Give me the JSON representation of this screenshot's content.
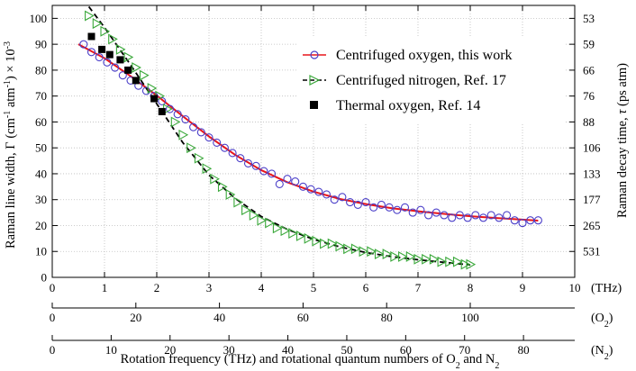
{
  "chart_data": {
    "type": "scatter",
    "title": "",
    "xlabel_parts": {
      "main": "Rotation frequency (THz) and rotational quantum numbers of O",
      "sub1": "2",
      "and": " and N",
      "sub2": "2"
    },
    "ylabel_left": {
      "prefix": "Raman line width, Γ (cm",
      "sup1": "-1",
      "mid": " atm",
      "sup2": "-1",
      "suffix": ") × 10",
      "sup3": "-3"
    },
    "ylabel_right": {
      "prefix": "Raman decay time, ",
      "tau": "τ",
      "suffix": " (ps atm)"
    },
    "xlim": [
      0,
      10
    ],
    "ylim": [
      0,
      105
    ],
    "grid": true,
    "legend_position": "top-right",
    "x_ticks": [
      "0",
      "1",
      "2",
      "3",
      "4",
      "5",
      "6",
      "7",
      "8",
      "9",
      "10"
    ],
    "x_unit": "(THz)",
    "y_ticks": [
      "0",
      "10",
      "20",
      "30",
      "40",
      "50",
      "60",
      "70",
      "80",
      "90",
      "100"
    ],
    "right_ticks": [
      {
        "label": "531",
        "gamma": 10
      },
      {
        "label": "265",
        "gamma": 20
      },
      {
        "label": "177",
        "gamma": 30
      },
      {
        "label": "133",
        "gamma": 40
      },
      {
        "label": "106",
        "gamma": 50
      },
      {
        "label": "88",
        "gamma": 60
      },
      {
        "label": "76",
        "gamma": 70
      },
      {
        "label": "66",
        "gamma": 80
      },
      {
        "label": "59",
        "gamma": 90
      },
      {
        "label": "53",
        "gamma": 100
      }
    ],
    "secondary_axes": [
      {
        "label": "(O",
        "sub": "2",
        "close": ")",
        "xmax": 125,
        "ticks": [
          0,
          20,
          40,
          60,
          80,
          100
        ],
        "tick_labels": [
          "0",
          "20",
          "40",
          "60",
          "80",
          "100"
        ]
      },
      {
        "label": "(N",
        "sub": "2",
        "close": ")",
        "xmax": 88.7,
        "ticks": [
          0,
          10,
          20,
          30,
          40,
          50,
          60,
          70,
          80
        ],
        "tick_labels": [
          "0",
          "10",
          "20",
          "30",
          "40",
          "50",
          "60",
          "70",
          "80"
        ]
      }
    ],
    "series": [
      {
        "name": "Centrifuged oxygen, this work",
        "marker": "circle",
        "color": "#4b3fc9",
        "line_color": "#e8161b",
        "x": [
          0.6,
          0.75,
          0.9,
          1.05,
          1.2,
          1.35,
          1.5,
          1.65,
          1.8,
          1.95,
          2.1,
          2.25,
          2.4,
          2.55,
          2.7,
          2.85,
          3.0,
          3.15,
          3.3,
          3.45,
          3.6,
          3.75,
          3.9,
          4.05,
          4.2,
          4.35,
          4.5,
          4.65,
          4.8,
          4.95,
          5.1,
          5.25,
          5.4,
          5.55,
          5.7,
          5.85,
          6.0,
          6.15,
          6.3,
          6.45,
          6.6,
          6.75,
          6.9,
          7.05,
          7.2,
          7.35,
          7.5,
          7.65,
          7.8,
          7.95,
          8.1,
          8.25,
          8.4,
          8.55,
          8.7,
          8.85,
          9.0,
          9.15,
          9.3
        ],
        "y": [
          90,
          87,
          85,
          83,
          81,
          78,
          76,
          74,
          72,
          70,
          68,
          65,
          63,
          61,
          58,
          56,
          54,
          52,
          50,
          48,
          46,
          44,
          43,
          41,
          40,
          36,
          38,
          37,
          35,
          34,
          33,
          32,
          30,
          31,
          29,
          28,
          29,
          27,
          28,
          27,
          26,
          27,
          25,
          26,
          24,
          25,
          24,
          23,
          24,
          23,
          24,
          23,
          24,
          23,
          24,
          22,
          21,
          22,
          22
        ]
      },
      {
        "name": "Centrifuged nitrogen, Ref. 17",
        "marker": "triangle-right",
        "color": "#3aa83a",
        "line_color": "#000000",
        "x": [
          0.7,
          0.85,
          1.0,
          1.15,
          1.3,
          1.45,
          1.6,
          1.75,
          1.9,
          2.05,
          2.2,
          2.35,
          2.5,
          2.65,
          2.8,
          2.95,
          3.1,
          3.25,
          3.4,
          3.55,
          3.7,
          3.85,
          4.0,
          4.15,
          4.3,
          4.45,
          4.6,
          4.75,
          4.9,
          5.05,
          5.2,
          5.35,
          5.5,
          5.65,
          5.8,
          5.95,
          6.1,
          6.25,
          6.4,
          6.55,
          6.7,
          6.85,
          7.0,
          7.15,
          7.3,
          7.45,
          7.6,
          7.75,
          7.9,
          8.0
        ],
        "y": [
          101,
          98,
          95,
          92,
          88,
          85,
          81,
          78,
          73,
          70,
          65,
          60,
          55,
          50,
          46,
          42,
          38,
          35,
          32,
          29,
          26,
          24,
          22,
          21,
          19,
          18,
          17,
          16,
          15,
          14,
          13,
          13,
          12,
          11,
          11,
          10,
          10,
          9,
          9,
          8,
          8,
          8,
          7,
          7,
          7,
          6,
          6,
          6,
          5,
          5
        ]
      },
      {
        "name": "Thermal oxygen, Ref. 14",
        "marker": "square",
        "color": "#000000",
        "x": [
          0.75,
          0.95,
          1.1,
          1.3,
          1.45,
          1.6,
          1.95,
          2.1
        ],
        "y": [
          93,
          88,
          86,
          84,
          80,
          76,
          69,
          64
        ]
      }
    ],
    "fits": [
      {
        "series": "Centrifuged oxygen, this work",
        "style": "solid",
        "color": "#e8161b",
        "x": [
          0.5,
          1,
          1.5,
          2,
          2.5,
          3,
          3.5,
          4,
          4.5,
          5,
          5.5,
          6,
          6.5,
          7,
          7.5,
          8,
          8.5,
          9,
          9.3
        ],
        "y": [
          90,
          84.6,
          77.7,
          70.2,
          62.2,
          54.4,
          47.3,
          41.4,
          36.7,
          33.1,
          30.3,
          28.3,
          26.7,
          25.5,
          24.5,
          23.6,
          22.9,
          22.3,
          21.9
        ]
      },
      {
        "series": "Centrifuged nitrogen, Ref. 17",
        "style": "dashed",
        "color": "#000000",
        "x": [
          0.7,
          1,
          1.5,
          2,
          2.5,
          3,
          3.5,
          4,
          4.5,
          5,
          5.5,
          6,
          6.5,
          7,
          7.5,
          8
        ],
        "y": [
          104.5,
          96.5,
          82,
          67,
          52,
          39.5,
          30.5,
          23.5,
          18.5,
          14.7,
          11.8,
          9.6,
          8,
          6.8,
          5.8,
          4.8
        ]
      }
    ]
  }
}
